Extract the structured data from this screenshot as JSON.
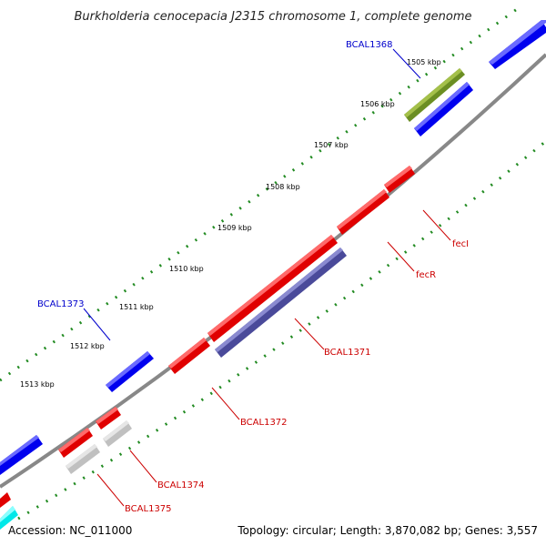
{
  "header": {
    "title": "Burkholderia cenocepacia J2315 chromosome 1, complete genome"
  },
  "footer": {
    "accession": "Accession: NC_011000",
    "summary": "Topology: circular; Length: 3,870,082 bp; Genes: 3,557"
  },
  "scale": {
    "kbp_labels": [
      "1505 kbp",
      "1506 kbp",
      "1507 kbp",
      "1508 kbp",
      "1509 kbp",
      "1510 kbp",
      "1511 kbp",
      "1512 kbp",
      "1513 kbp"
    ]
  },
  "genes": {
    "bcal1368": "BCAL1368",
    "feci": "fecI",
    "fecr": "fecR",
    "bcal1371": "BCAL1371",
    "bcal1372": "BCAL1372",
    "bcal1373": "BCAL1373",
    "bcal1374": "BCAL1374",
    "bcal1375": "BCAL1375"
  },
  "colors": {
    "forward_gene": "#0000ff",
    "reverse_gene": "#ff0000",
    "olive_gene": "#6b8e23",
    "slate_gene": "#4a4a9a",
    "gray_gene": "#c0c0c0",
    "cyan_gene": "#00ffff",
    "backbone": "#888888",
    "tick_dots": "#228b22",
    "forward_label": "#0000cc",
    "reverse_label": "#cc0000"
  }
}
